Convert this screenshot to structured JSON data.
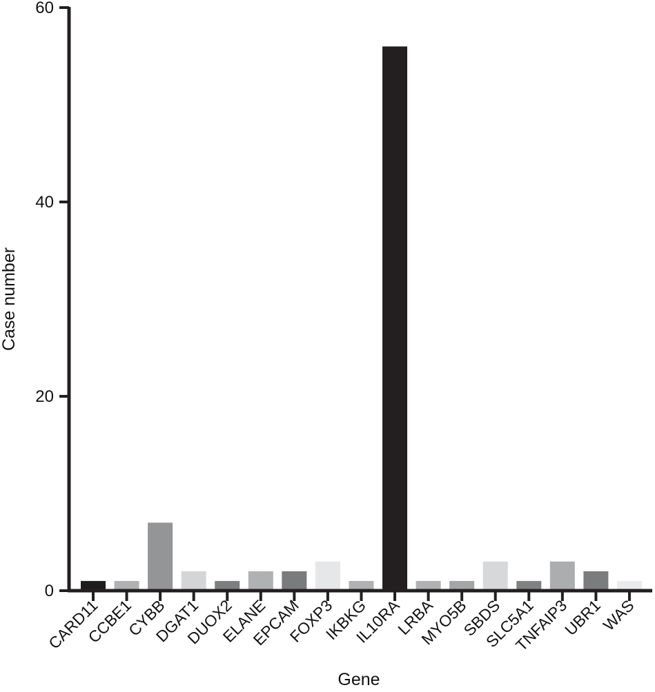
{
  "chart_data": {
    "type": "bar",
    "xlabel": "Gene",
    "ylabel": "Case number",
    "ylim": [
      0,
      60
    ],
    "yticks": [
      0,
      20,
      40,
      60
    ],
    "grid": false,
    "categories": [
      "CARD11",
      "CCBE1",
      "CYBB",
      "DGAT1",
      "DUOX2",
      "ELANE",
      "EPCAM",
      "FOXP3",
      "IKBKG",
      "IL10RA",
      "LRBA",
      "MYO5B",
      "SBDS",
      "SLC5A1",
      "TNFAIP3",
      "UBR1",
      "WAS"
    ],
    "values": [
      1,
      1,
      7,
      2,
      1,
      2,
      2,
      3,
      1,
      56,
      1,
      1,
      3,
      1,
      3,
      2,
      1
    ],
    "colors": [
      "#1e1c1d",
      "#b1b1b3",
      "#949597",
      "#d4d5d7",
      "#7d7e80",
      "#b0b1b3",
      "#7a7b7d",
      "#e6e7e9",
      "#b1b1b3",
      "#231f20",
      "#b1b1b3",
      "#a4a5a7",
      "#d7d8da",
      "#808183",
      "#acadaf",
      "#7b7c7e",
      "#eaebed"
    ]
  }
}
